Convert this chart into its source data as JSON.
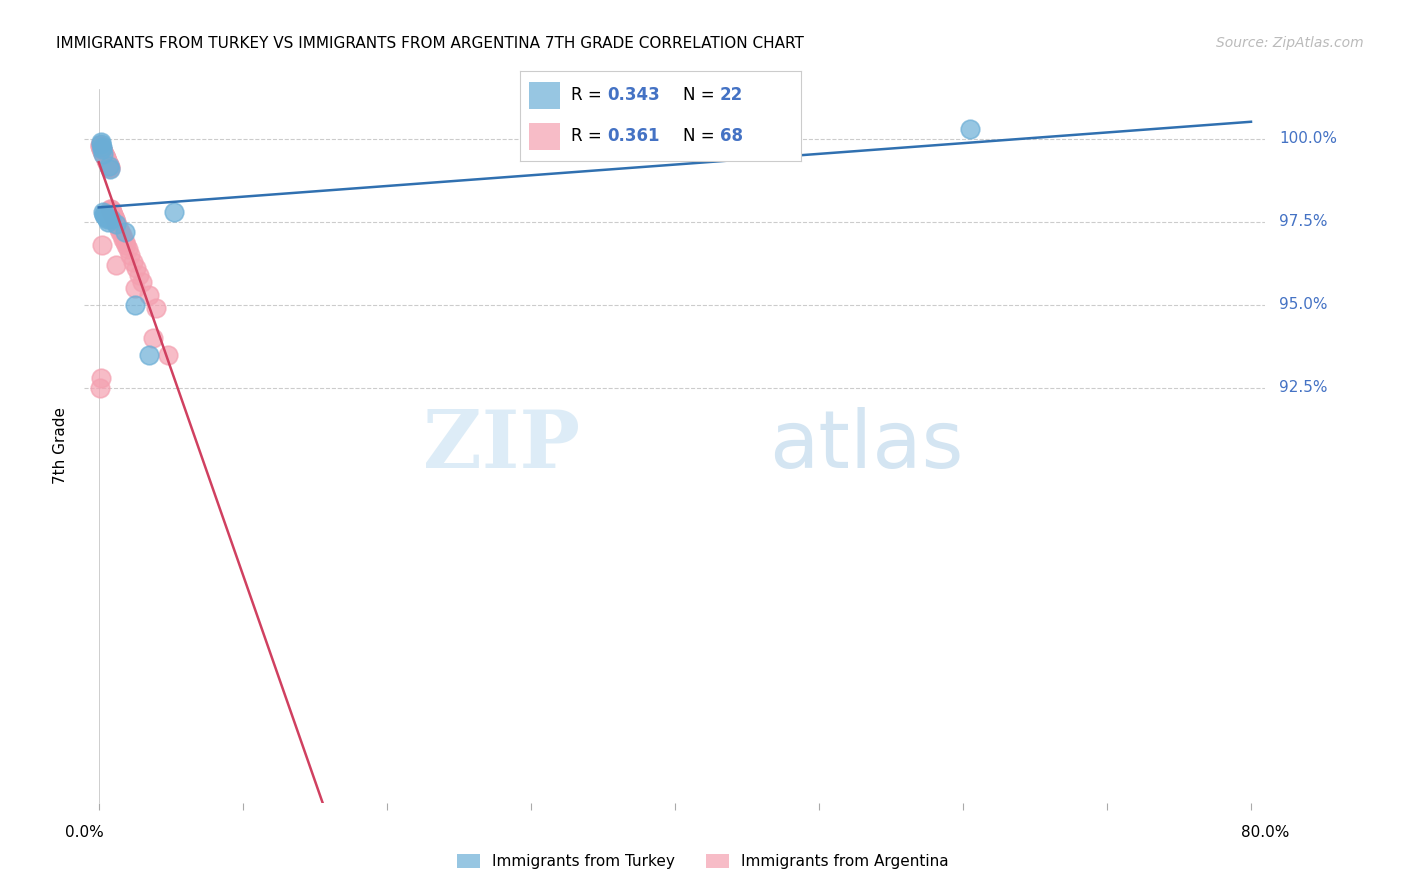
{
  "title": "IMMIGRANTS FROM TURKEY VS IMMIGRANTS FROM ARGENTINA 7TH GRADE CORRELATION CHART",
  "source": "Source: ZipAtlas.com",
  "ylabel": "7th Grade",
  "xlim": [
    -1,
    81
  ],
  "ylim": [
    80.0,
    101.5
  ],
  "y_ticks": [
    100.0,
    97.5,
    95.0,
    92.5
  ],
  "y_tick_labels": [
    "100.0%",
    "97.5%",
    "95.0%",
    "92.5%"
  ],
  "legend_turkey_r": "0.343",
  "legend_turkey_n": "22",
  "legend_argentina_r": "0.361",
  "legend_argentina_n": "68",
  "turkey_color": "#6baed6",
  "argentina_color": "#f4a0b0",
  "turkey_line_color": "#3070b0",
  "argentina_line_color": "#d04060",
  "watermark_zip": "ZIP",
  "watermark_atlas": "atlas",
  "legend_label_turkey": "Immigrants from Turkey",
  "legend_label_argentina": "Immigrants from Argentina",
  "r_n_color": "#4472c4",
  "right_tick_color": "#4472c4"
}
